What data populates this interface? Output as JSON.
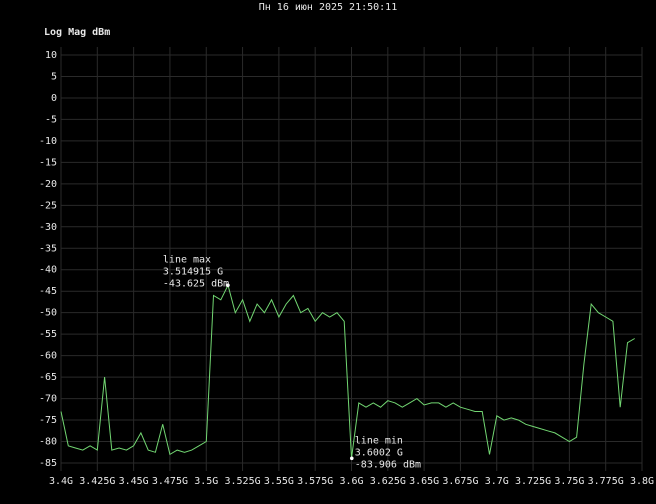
{
  "chart_data": {
    "type": "line",
    "title": "Пн 16 июн 2025 21:50:11",
    "y_label": "Log Mag dBm",
    "x": [
      3.4,
      3.405,
      3.41,
      3.415,
      3.42,
      3.425,
      3.43,
      3.435,
      3.44,
      3.445,
      3.45,
      3.455,
      3.46,
      3.465,
      3.47,
      3.475,
      3.48,
      3.485,
      3.49,
      3.495,
      3.5,
      3.505,
      3.51,
      3.515,
      3.52,
      3.525,
      3.53,
      3.535,
      3.54,
      3.545,
      3.55,
      3.555,
      3.56,
      3.565,
      3.57,
      3.575,
      3.58,
      3.585,
      3.59,
      3.595,
      3.6,
      3.605,
      3.61,
      3.615,
      3.62,
      3.625,
      3.63,
      3.635,
      3.64,
      3.645,
      3.65,
      3.655,
      3.66,
      3.665,
      3.67,
      3.675,
      3.68,
      3.685,
      3.69,
      3.695,
      3.7,
      3.705,
      3.71,
      3.715,
      3.72,
      3.725,
      3.73,
      3.735,
      3.74,
      3.745,
      3.75,
      3.755,
      3.76,
      3.765,
      3.77,
      3.775,
      3.78,
      3.785,
      3.79,
      3.795
    ],
    "series": [
      {
        "name": "line",
        "color": "#72d672",
        "values": [
          -73,
          -81,
          -81.5,
          -82,
          -81,
          -82,
          -65,
          -82,
          -81.5,
          -82,
          -81,
          -78,
          -82,
          -82.5,
          -76,
          -83,
          -82,
          -82.5,
          -82,
          -81,
          -80,
          -46,
          -47,
          -43.625,
          -50,
          -47,
          -52,
          -48,
          -50,
          -47,
          -51,
          -48,
          -46,
          -50,
          -49,
          -52,
          -50,
          -51,
          -50,
          -52,
          -83.906,
          -71,
          -72,
          -71,
          -72,
          -70.5,
          -71,
          -72,
          -71,
          -70,
          -71.5,
          -71,
          -71,
          -72,
          -71,
          -72,
          -72.5,
          -73,
          -73,
          -83,
          -74,
          -75,
          -74.5,
          -75,
          -76,
          -76.5,
          -77,
          -77.5,
          -78,
          -79,
          -80,
          -79,
          -62,
          -48,
          -50,
          -51,
          -52,
          -72,
          -57,
          -56
        ]
      }
    ],
    "markers": [
      {
        "name": "line max",
        "x": 3.514915,
        "x_label": "3.514915 G",
        "y": -43.625,
        "y_label": "-43.625 dBm"
      },
      {
        "name": "line min",
        "x": 3.6002,
        "x_label": "3.6002 G",
        "y": -83.906,
        "y_label": "-83.906 dBm"
      }
    ],
    "xlim": [
      3.4,
      3.8
    ],
    "xticks": [
      {
        "value": 3.4,
        "label": "3.4G"
      },
      {
        "value": 3.425,
        "label": "3.425G"
      },
      {
        "value": 3.45,
        "label": "3.45G"
      },
      {
        "value": 3.475,
        "label": "3.475G"
      },
      {
        "value": 3.5,
        "label": "3.5G"
      },
      {
        "value": 3.525,
        "label": "3.525G"
      },
      {
        "value": 3.55,
        "label": "3.55G"
      },
      {
        "value": 3.575,
        "label": "3.575G"
      },
      {
        "value": 3.6,
        "label": "3.6G"
      },
      {
        "value": 3.625,
        "label": "3.625G"
      },
      {
        "value": 3.65,
        "label": "3.65G"
      },
      {
        "value": 3.675,
        "label": "3.675G"
      },
      {
        "value": 3.7,
        "label": "3.7G"
      },
      {
        "value": 3.725,
        "label": "3.725G"
      },
      {
        "value": 3.75,
        "label": "3.75G"
      },
      {
        "value": 3.775,
        "label": "3.775G"
      },
      {
        "value": 3.8,
        "label": "3.8G"
      }
    ],
    "ylim": [
      -85,
      10
    ],
    "yticks": [
      10,
      5,
      0,
      -5,
      -10,
      -15,
      -20,
      -25,
      -30,
      -35,
      -40,
      -45,
      -50,
      -55,
      -60,
      -65,
      -70,
      -75,
      -80,
      -85
    ],
    "grid": true
  }
}
